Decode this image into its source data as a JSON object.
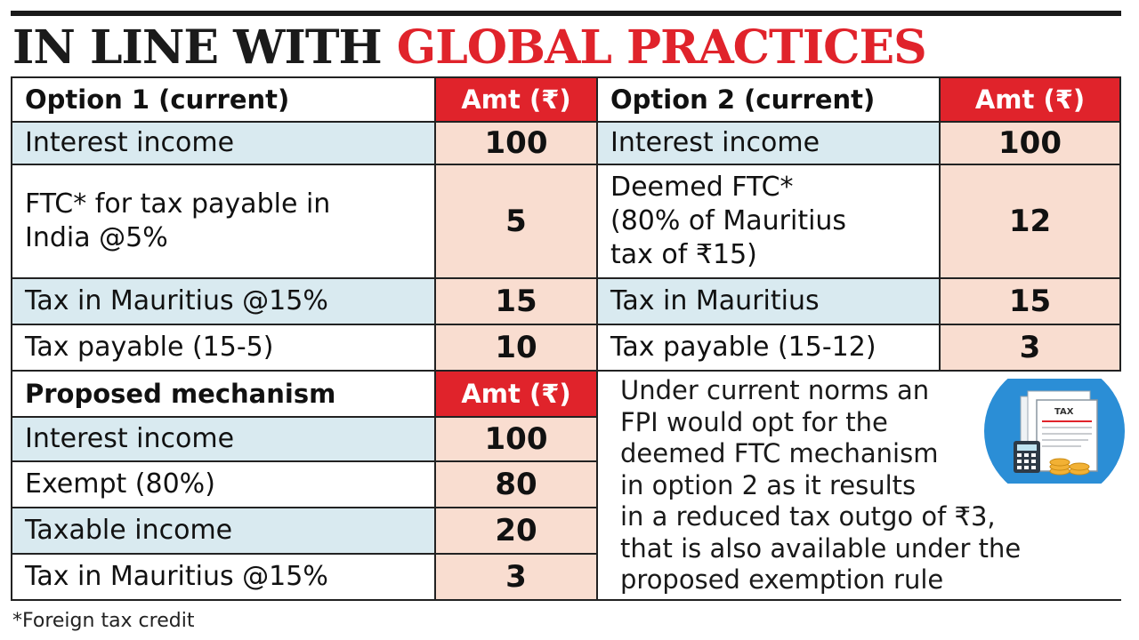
{
  "title": {
    "part1": "IN LINE WITH",
    "part2": "GLOBAL PRACTICES"
  },
  "colors": {
    "accent_red": "#e0232b",
    "row_blue": "#d9eaf0",
    "value_peach": "#f9ddd0",
    "rule_dark": "#1a1a1a"
  },
  "option1": {
    "header": "Option 1 (current)",
    "amt_header": "Amt (₹)",
    "rows": [
      {
        "label": "Interest income",
        "value": "100"
      },
      {
        "label": "FTC* for tax payable in\nIndia @5%",
        "value": "5"
      },
      {
        "label": "Tax in Mauritius @15%",
        "value": "15"
      },
      {
        "label": "Tax payable (15-5)",
        "value": "10"
      }
    ]
  },
  "option2": {
    "header": "Option 2 (current)",
    "amt_header": "Amt (₹)",
    "rows": [
      {
        "label": "Interest income",
        "value": "100"
      },
      {
        "label": "Deemed FTC*\n(80% of Mauritius\ntax of  ₹15)",
        "value": "12"
      },
      {
        "label": "Tax in Mauritius",
        "value": "15"
      },
      {
        "label": "Tax payable (15-12)",
        "value": "3"
      }
    ]
  },
  "proposed": {
    "header": "Proposed mechanism",
    "amt_header": "Amt (₹)",
    "rows": [
      {
        "label": "Interest income",
        "value": "100"
      },
      {
        "label": "Exempt (80%)",
        "value": "80"
      },
      {
        "label": "Taxable income",
        "value": "20"
      },
      {
        "label": "Tax in Mauritius @15%",
        "value": "3"
      }
    ]
  },
  "note": {
    "lines": [
      "Under current norms an",
      "FPI would opt for the",
      "deemed FTC mechanism",
      "in option 2 as it results",
      "in a reduced tax outgo of ₹3,",
      "that is also available under  the",
      "proposed exemption rule"
    ]
  },
  "illustration": {
    "icon": "tax-documents-calculator-icon",
    "label": "TAX"
  },
  "footnote": "*Foreign tax credit"
}
